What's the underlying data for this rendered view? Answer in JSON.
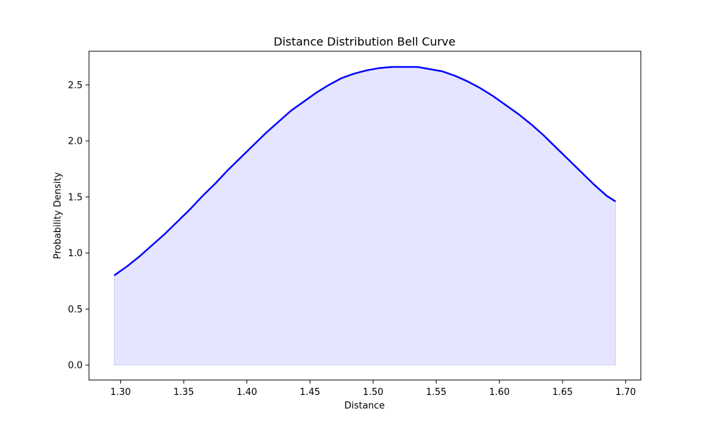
{
  "chart_data": {
    "type": "area",
    "title": "Distance Distribution Bell Curve",
    "xlabel": "Distance",
    "ylabel": "Probability Density",
    "xlim": [
      1.275,
      1.712
    ],
    "ylim": [
      -0.133,
      2.8
    ],
    "xticks": [
      "1.30",
      "1.35",
      "1.40",
      "1.45",
      "1.50",
      "1.55",
      "1.60",
      "1.65",
      "1.70"
    ],
    "yticks": [
      "0.0",
      "0.5",
      "1.0",
      "1.5",
      "2.0",
      "2.5"
    ],
    "grid": false,
    "series": [
      {
        "line_color": "#0000ff",
        "fill_color": "#e5e5ff",
        "x": [
          1.295,
          1.305,
          1.315,
          1.325,
          1.335,
          1.345,
          1.355,
          1.365,
          1.375,
          1.385,
          1.395,
          1.405,
          1.415,
          1.425,
          1.435,
          1.445,
          1.455,
          1.465,
          1.475,
          1.485,
          1.495,
          1.505,
          1.515,
          1.525,
          1.535,
          1.545,
          1.555,
          1.565,
          1.575,
          1.585,
          1.595,
          1.605,
          1.615,
          1.625,
          1.635,
          1.645,
          1.655,
          1.665,
          1.675,
          1.685,
          1.692
        ],
        "y": [
          0.8,
          0.88,
          0.97,
          1.07,
          1.17,
          1.28,
          1.39,
          1.51,
          1.62,
          1.74,
          1.85,
          1.96,
          2.07,
          2.17,
          2.27,
          2.35,
          2.43,
          2.5,
          2.56,
          2.6,
          2.63,
          2.65,
          2.66,
          2.66,
          2.66,
          2.64,
          2.62,
          2.58,
          2.53,
          2.47,
          2.4,
          2.32,
          2.24,
          2.15,
          2.05,
          1.94,
          1.83,
          1.72,
          1.61,
          1.51,
          1.46
        ]
      }
    ]
  }
}
